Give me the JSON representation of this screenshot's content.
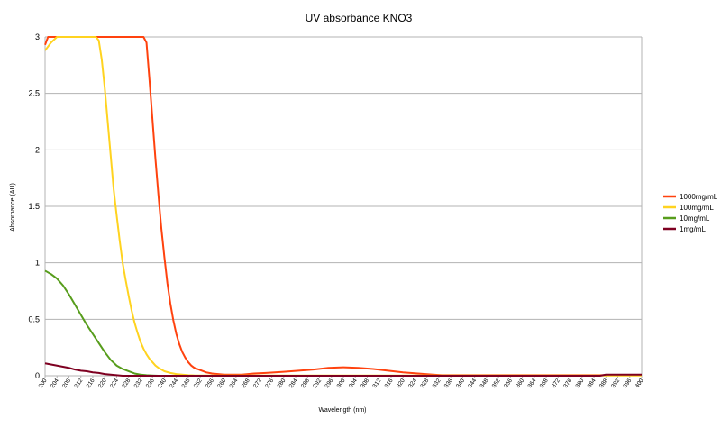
{
  "chart_data": {
    "type": "line",
    "title": "UV absorbance KNO3",
    "xlabel": "Wavelength (nm)",
    "ylabel": "Absorbance (AU)",
    "xlim": [
      200,
      400
    ],
    "ylim": [
      0,
      3
    ],
    "x_ticks": [
      200,
      204,
      208,
      212,
      216,
      220,
      224,
      228,
      232,
      236,
      240,
      244,
      248,
      252,
      256,
      260,
      264,
      268,
      272,
      276,
      280,
      284,
      288,
      292,
      296,
      300,
      304,
      308,
      312,
      316,
      320,
      324,
      328,
      332,
      336,
      340,
      344,
      348,
      352,
      356,
      360,
      364,
      368,
      372,
      376,
      380,
      384,
      388,
      392,
      396,
      400
    ],
    "y_ticks": [
      0,
      0.5,
      1,
      1.5,
      2,
      2.5,
      3
    ],
    "y_tick_labels": [
      "0",
      "0.5",
      "1",
      "1.5",
      "2",
      "2.5",
      "3"
    ],
    "grid": "horizontal",
    "legend_position": "right",
    "series": [
      {
        "name": "1000mg/mL",
        "color": "#ff420e",
        "x": [
          200,
          201,
          202,
          210,
          220,
          230,
          233,
          234,
          235,
          236,
          237,
          238,
          239,
          240,
          241,
          242,
          243,
          244,
          245,
          246,
          247,
          248,
          249,
          250,
          252,
          254,
          256,
          258,
          260,
          262,
          264,
          266,
          268,
          270,
          274,
          280,
          285,
          290,
          295,
          300,
          305,
          310,
          315,
          320,
          325,
          330,
          333,
          340,
          350,
          360,
          370,
          380,
          390,
          400
        ],
        "y": [
          2.93,
          3.0,
          3.0,
          3.0,
          3.0,
          3.0,
          3.0,
          2.95,
          2.62,
          2.27,
          1.92,
          1.6,
          1.3,
          1.05,
          0.82,
          0.64,
          0.49,
          0.37,
          0.28,
          0.21,
          0.16,
          0.12,
          0.09,
          0.07,
          0.05,
          0.03,
          0.02,
          0.015,
          0.01,
          0.01,
          0.01,
          0.01,
          0.015,
          0.02,
          0.025,
          0.035,
          0.045,
          0.055,
          0.07,
          0.075,
          0.07,
          0.06,
          0.045,
          0.03,
          0.02,
          0.01,
          0.005,
          0.005,
          0.005,
          0.005,
          0.005,
          0.005,
          0.005,
          0.005
        ]
      },
      {
        "name": "100mg/mL",
        "color": "#ffd320",
        "x": [
          200,
          202,
          204,
          206,
          208,
          210,
          212,
          214,
          216,
          217,
          218,
          219,
          220,
          221,
          222,
          223,
          224,
          225,
          226,
          227,
          228,
          229,
          230,
          231,
          232,
          233,
          234,
          235,
          236,
          237,
          238,
          239,
          240,
          242,
          244,
          246,
          248,
          250,
          254,
          258,
          262,
          270,
          280,
          290,
          300,
          310,
          320,
          330,
          340,
          350,
          360,
          370,
          380,
          390,
          400
        ],
        "y": [
          2.88,
          2.95,
          3.0,
          3.0,
          3.0,
          3.0,
          3.0,
          3.0,
          3.0,
          3.0,
          2.97,
          2.8,
          2.55,
          2.25,
          1.95,
          1.65,
          1.42,
          1.2,
          1.0,
          0.85,
          0.71,
          0.58,
          0.47,
          0.38,
          0.3,
          0.24,
          0.19,
          0.15,
          0.12,
          0.09,
          0.07,
          0.055,
          0.04,
          0.025,
          0.015,
          0.01,
          0.005,
          0.003,
          0.002,
          0.002,
          0.002,
          0.002,
          0.002,
          0.002,
          0.002,
          0.002,
          0.002,
          0.002,
          0.002,
          0.002,
          0.002,
          0.002,
          0.002,
          0.002,
          0.002
        ]
      },
      {
        "name": "10mg/mL",
        "color": "#579d1c",
        "x": [
          200,
          202,
          204,
          206,
          208,
          210,
          212,
          214,
          216,
          218,
          220,
          222,
          224,
          226,
          228,
          230,
          232,
          234,
          236,
          238,
          240
        ],
        "y": [
          0.93,
          0.9,
          0.86,
          0.8,
          0.72,
          0.63,
          0.54,
          0.45,
          0.37,
          0.29,
          0.21,
          0.14,
          0.09,
          0.06,
          0.04,
          0.02,
          0.01,
          0.005,
          0.002,
          0.0,
          0.0
        ]
      },
      {
        "name": "1mg/mL",
        "color": "#7e0021",
        "x": [
          200,
          202,
          204,
          206,
          208,
          210,
          212,
          214,
          216,
          218,
          220,
          222,
          224,
          226,
          228,
          230,
          232,
          236,
          240,
          250,
          300,
          350,
          386,
          388,
          390,
          395,
          400
        ],
        "y": [
          0.11,
          0.1,
          0.09,
          0.08,
          0.07,
          0.055,
          0.045,
          0.04,
          0.03,
          0.025,
          0.015,
          0.01,
          0.005,
          0.0,
          0.0,
          0.0,
          0.0,
          0.0,
          0.0,
          0.0,
          0.0,
          0.0,
          0.0,
          0.01,
          0.01,
          0.01,
          0.01
        ]
      }
    ]
  }
}
